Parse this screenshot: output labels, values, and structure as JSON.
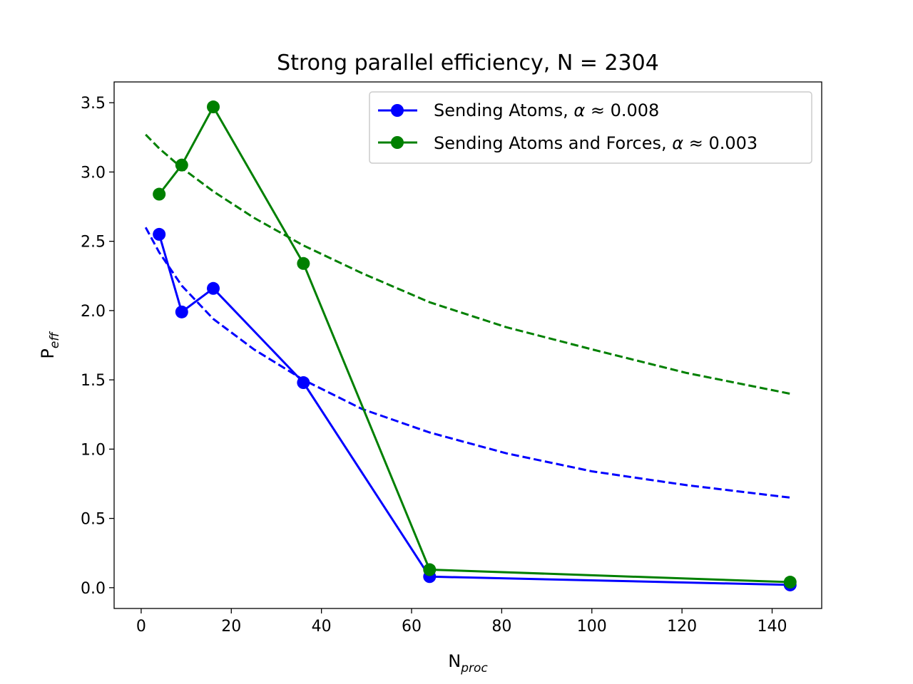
{
  "chart_data": {
    "type": "line",
    "title": "Strong parallel efficiency, N = 2304",
    "xlabel": {
      "main": "N",
      "sub": "proc"
    },
    "ylabel": {
      "main": "P",
      "sub": "eff"
    },
    "xlim": [
      -6,
      151
    ],
    "ylim": [
      -0.15,
      3.65
    ],
    "xticks": [
      0,
      20,
      40,
      60,
      80,
      100,
      120,
      140
    ],
    "yticks": [
      0.0,
      0.5,
      1.0,
      1.5,
      2.0,
      2.5,
      3.0,
      3.5
    ],
    "legend_position": "upper right",
    "series": [
      {
        "name": "Sending Atoms, α ≈ 0.008",
        "legend": {
          "prefix": "Sending Atoms, ",
          "alpha": "α",
          "approx": " ≈ 0.008"
        },
        "color": "#0000ff",
        "x": [
          4,
          9,
          16,
          36,
          64,
          144
        ],
        "y": [
          2.55,
          1.99,
          2.16,
          1.48,
          0.08,
          0.02
        ],
        "fit": {
          "x": [
            1,
            4,
            9,
            16,
            25,
            36,
            49,
            64,
            81,
            100,
            121,
            144
          ],
          "y": [
            2.6,
            2.42,
            2.18,
            1.94,
            1.72,
            1.5,
            1.29,
            1.12,
            0.97,
            0.84,
            0.74,
            0.65
          ]
        }
      },
      {
        "name": "Sending Atoms and Forces, α ≈ 0.003",
        "legend": {
          "prefix": "Sending Atoms and Forces, ",
          "alpha": "α",
          "approx": " ≈ 0.003"
        },
        "color": "#008000",
        "x": [
          4,
          9,
          16,
          36,
          64,
          144
        ],
        "y": [
          2.84,
          3.05,
          3.47,
          2.34,
          0.13,
          0.04
        ],
        "fit": {
          "x": [
            1,
            4,
            9,
            16,
            25,
            36,
            49,
            64,
            81,
            100,
            121,
            144
          ],
          "y": [
            3.27,
            3.17,
            3.03,
            2.86,
            2.67,
            2.47,
            2.27,
            2.06,
            1.88,
            1.72,
            1.55,
            1.4
          ]
        }
      }
    ]
  }
}
